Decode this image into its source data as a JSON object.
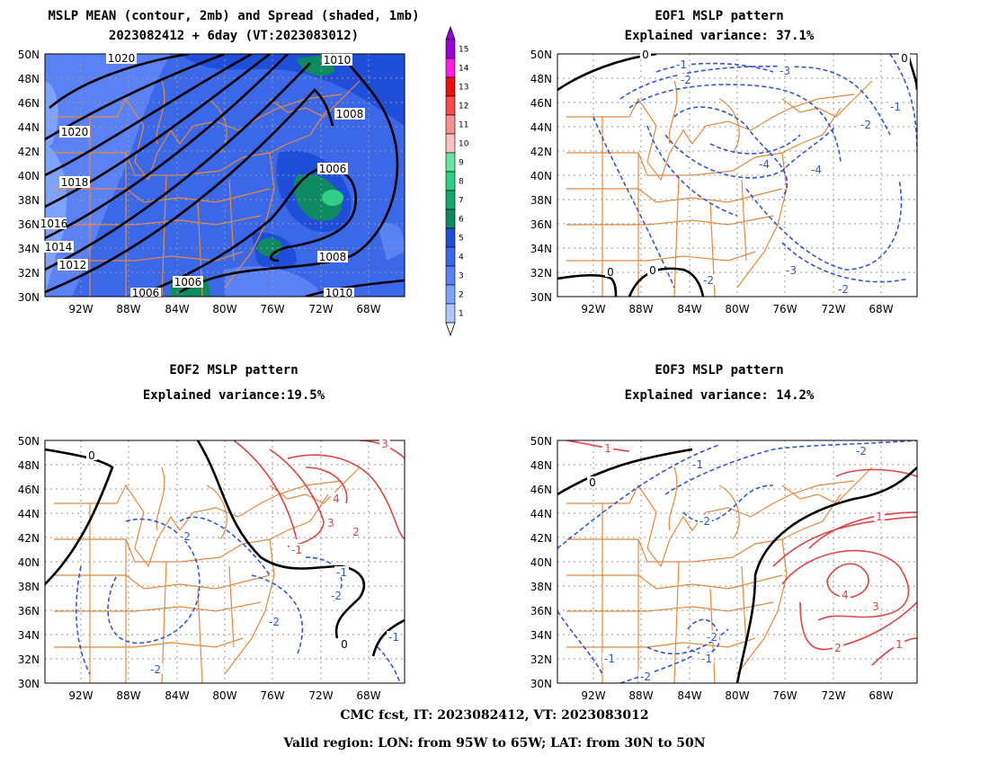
{
  "titles": {
    "mean_line1": "MSLP MEAN (contour, 2mb) and Spread (shaded, 1mb)",
    "mean_line2": "2023082412 + 6day (VT:2023083012)",
    "eof1_line1": "EOF1 MSLP pattern",
    "eof1_line2": "Explained variance: 37.1%",
    "eof2_line1": "EOF2 MSLP pattern",
    "eof2_line2": "Explained variance:19.5%",
    "eof3_line1": "EOF3 MSLP pattern",
    "eof3_line2": "Explained variance: 14.2%"
  },
  "footer": {
    "line1": "CMC fcst, IT: 2023082412, VT: 2023083012",
    "line2": "Valid region: LON: from 95W to 65W; LAT: from 30N to 50N"
  },
  "axes": {
    "lat_labels": [
      "50N",
      "48N",
      "46N",
      "44N",
      "42N",
      "40N",
      "38N",
      "36N",
      "34N",
      "32N",
      "30N"
    ],
    "lon_labels": [
      "92W",
      "88W",
      "84W",
      "80W",
      "76W",
      "72W",
      "68W"
    ]
  },
  "colorbar": {
    "levels": [
      "1",
      "2",
      "3",
      "4",
      "5",
      "6",
      "7",
      "8",
      "9",
      "10",
      "11",
      "12",
      "13",
      "14",
      "15"
    ],
    "colors": [
      "#aec8ff",
      "#7ea2ff",
      "#5a82f5",
      "#3a68e8",
      "#1f4fd8",
      "#0e8a62",
      "#16a86f",
      "#2fcf86",
      "#66e6a6",
      "#ffc0c0",
      "#ff8e8e",
      "#ff4a4a",
      "#e81010",
      "#ff1ee8",
      "#9b00d8"
    ]
  },
  "mean_contour_labels": [
    "1020",
    "1010",
    "1008",
    "1020",
    "1018",
    "1006",
    "1016",
    "1014",
    "1012",
    "1008",
    "1006",
    "1006",
    "1010"
  ],
  "eof1_labels": [
    "0",
    "-1",
    "-2",
    "-3",
    "-1",
    "-2",
    "-4",
    "-4",
    "-3",
    "-2",
    "0",
    "0",
    "-2",
    "0"
  ],
  "eof2_labels": [
    "0",
    "4",
    "3",
    "-2",
    "2",
    "-1",
    "-1",
    "-2",
    "-2",
    "0",
    "-1",
    "-2",
    "3"
  ],
  "eof3_labels": [
    "1",
    "-1",
    "0",
    "-2",
    "1",
    "4",
    "3",
    "-2",
    "-1",
    "-2",
    "-1",
    "-2",
    "2",
    "1"
  ],
  "colors": {
    "state_lines": "#e8893a",
    "negative_contour": "#3355dd",
    "positive_contour": "#e04444",
    "zero_contour": "#000000",
    "grid": "#9a9a9a"
  }
}
